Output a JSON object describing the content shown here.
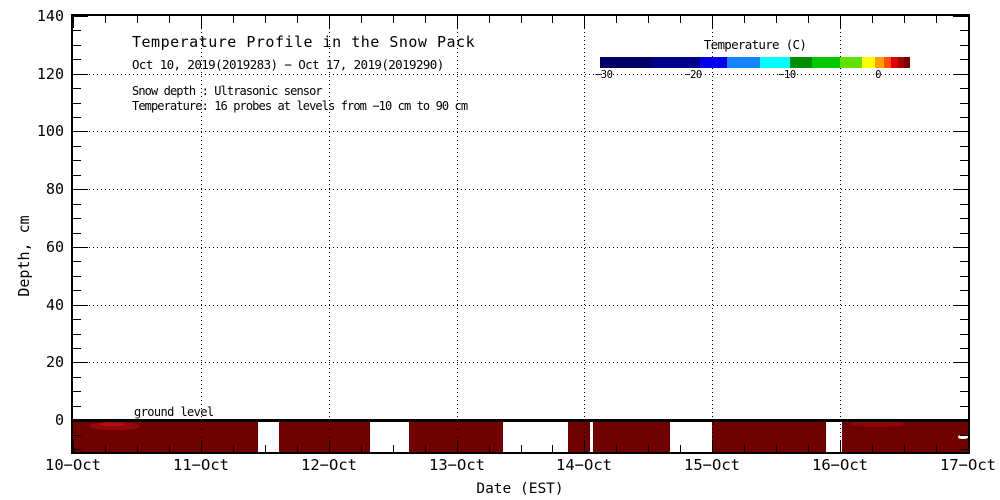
{
  "chart_data": {
    "type": "heatmap",
    "title": "Temperature Profile in the Snow Pack",
    "subtitle": "Oct 10, 2019(2019283) − Oct 17, 2019(2019290)",
    "note1": "Snow depth : Ultrasonic sensor",
    "note2": "Temperature: 16 probes at levels from −10 cm to 90 cm",
    "xlabel": "Date (EST)",
    "ylabel": "Depth, cm",
    "ground_level_label": "ground level",
    "grid": "dotted",
    "axes": {
      "x": {
        "range": [
          10,
          17
        ],
        "unit": "day-of-October-2019",
        "minor_step_days": 0.25,
        "grid_at": [
          11,
          12,
          13,
          14,
          15,
          16
        ],
        "ticks": [
          {
            "v": 10,
            "label": "10−Oct"
          },
          {
            "v": 11,
            "label": "11−Oct"
          },
          {
            "v": 12,
            "label": "12−Oct"
          },
          {
            "v": 13,
            "label": "13−Oct"
          },
          {
            "v": 14,
            "label": "14−Oct"
          },
          {
            "v": 15,
            "label": "15−Oct"
          },
          {
            "v": 16,
            "label": "16−Oct"
          },
          {
            "v": 17,
            "label": "17−Oct"
          }
        ]
      },
      "y": {
        "range": [
          -11,
          140
        ],
        "unit": "cm",
        "minor_step": 5,
        "grid_at": [
          20,
          40,
          60,
          80,
          100,
          120
        ],
        "ticks": [
          {
            "v": 0,
            "label": "0"
          },
          {
            "v": 20,
            "label": "20"
          },
          {
            "v": 40,
            "label": "40"
          },
          {
            "v": 60,
            "label": "60"
          },
          {
            "v": 80,
            "label": "80"
          },
          {
            "v": 100,
            "label": "100"
          },
          {
            "v": 120,
            "label": "120"
          },
          {
            "v": 140,
            "label": "140"
          }
        ]
      }
    },
    "ground_level_cm": 0,
    "band": {
      "description": "below-ground probe temperatures, ~0 C (dark red), white = no data",
      "top_cm": 0,
      "bottom_cm": -11,
      "color": "#700000",
      "segments_days": [
        [
          10.0,
          11.45
        ],
        [
          11.615,
          12.325
        ],
        [
          12.63,
          13.365
        ],
        [
          13.87,
          14.045
        ],
        [
          14.065,
          14.665
        ],
        [
          15.0,
          15.895
        ],
        [
          16.015,
          17.0
        ]
      ],
      "patches": [
        {
          "d0": 10.13,
          "d1": 10.52,
          "z0": -0.6,
          "z1": -3.3,
          "color": "#94080b"
        },
        {
          "d0": 10.2,
          "d1": 10.4,
          "z0": -1.0,
          "z1": -2.2,
          "color": "#b51010"
        },
        {
          "d0": 16.08,
          "d1": 16.5,
          "z0": -0.4,
          "z1": -2.4,
          "color": "#8a0707"
        },
        {
          "d0": 16.92,
          "d1": 17.0,
          "z0": -5.2,
          "z1": -6.5,
          "color": "#ffffff"
        }
      ]
    },
    "colorbar": {
      "title": "Temperature (C)",
      "range": [
        -30,
        3.4
      ],
      "ticks": [
        {
          "f": 0.012,
          "label": "−30"
        },
        {
          "f": 0.3,
          "label": "−20"
        },
        {
          "f": 0.603,
          "label": "−10"
        },
        {
          "f": 0.897,
          "label": "0"
        }
      ],
      "segments": [
        {
          "f0": 0.0,
          "f1": 0.168,
          "c": "#00006a"
        },
        {
          "f0": 0.168,
          "f1": 0.323,
          "c": "#000089"
        },
        {
          "f0": 0.323,
          "f1": 0.41,
          "c": "#0000e8"
        },
        {
          "f0": 0.41,
          "f1": 0.516,
          "c": "#1283ff"
        },
        {
          "f0": 0.516,
          "f1": 0.613,
          "c": "#00ffff"
        },
        {
          "f0": 0.613,
          "f1": 0.684,
          "c": "#008c00"
        },
        {
          "f0": 0.684,
          "f1": 0.774,
          "c": "#00c800"
        },
        {
          "f0": 0.774,
          "f1": 0.845,
          "c": "#63e100"
        },
        {
          "f0": 0.845,
          "f1": 0.887,
          "c": "#ffff00"
        },
        {
          "f0": 0.887,
          "f1": 0.916,
          "c": "#ffa000"
        },
        {
          "f0": 0.916,
          "f1": 0.939,
          "c": "#ff5000"
        },
        {
          "f0": 0.939,
          "f1": 0.961,
          "c": "#e10000"
        },
        {
          "f0": 0.961,
          "f1": 0.981,
          "c": "#aa0000"
        },
        {
          "f0": 0.981,
          "f1": 1.0,
          "c": "#780000"
        }
      ]
    }
  }
}
